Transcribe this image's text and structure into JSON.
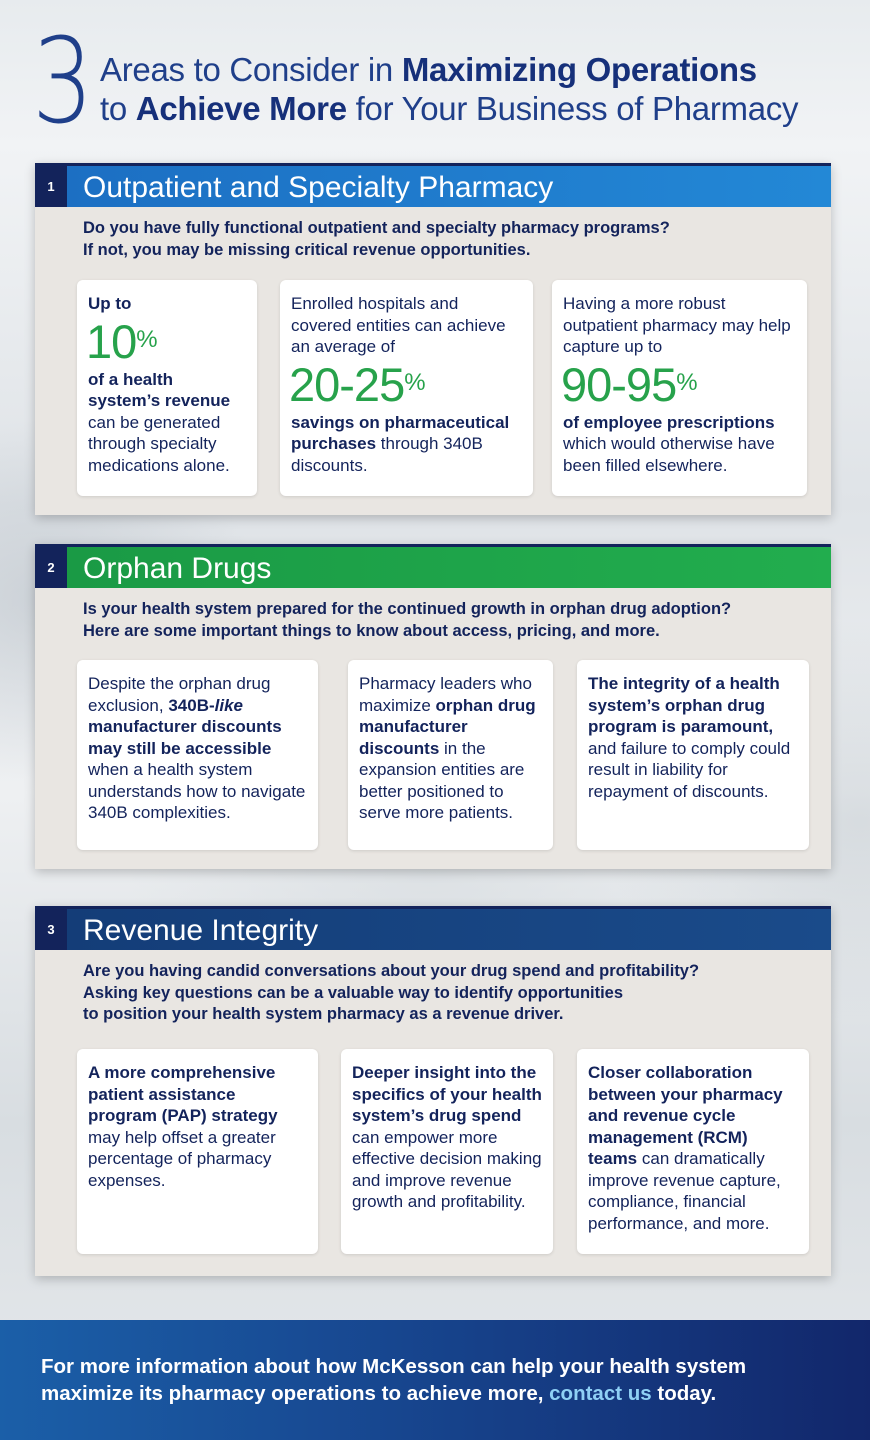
{
  "header": {
    "big_number": "3",
    "line1_pre": "Areas to Consider in ",
    "line1_bold": "Maximizing Operations",
    "line2_pre": "to ",
    "line2_bold": "Achieve More",
    "line2_post": " for Your Business of Pharmacy"
  },
  "colors": {
    "navy": "#13235b",
    "section1_bar": "#1f7ed0",
    "section2_bar": "#1fa64a",
    "section3_bar": "#17457f",
    "stat_green": "#27a24b",
    "footer_link": "#8fd0f5"
  },
  "sections": [
    {
      "number": "1",
      "title": "Outpatient and Specialty Pharmacy",
      "question_lines": [
        "Do you have fully functional outpatient and specialty pharmacy programs?",
        "If not, you may be missing critical revenue opportunities."
      ],
      "cards": [
        {
          "pre_bold": "Up to",
          "stat_value": "10",
          "stat_unit": "%",
          "bold": "of a health system’s revenue",
          "text": " can be generated through specialty medications alone."
        },
        {
          "pre_text": "Enrolled hospitals and covered entities can achieve an average of",
          "stat_value": "20-25",
          "stat_unit": "%",
          "bold": "savings on pharmaceutical purchases",
          "text": " through 340B discounts."
        },
        {
          "pre_text": "Having a more robust outpatient pharmacy may help capture up to",
          "stat_value": "90-95",
          "stat_unit": "%",
          "bold": "of employee prescriptions",
          "text": " which would otherwise have been filled elsewhere."
        }
      ]
    },
    {
      "number": "2",
      "title": "Orphan Drugs",
      "question_lines": [
        "Is your health system prepared for the continued growth in orphan drug adoption?",
        "Here are some important things to know about access, pricing, and more."
      ],
      "cards": [
        {
          "t1": "Despite the orphan drug exclusion, ",
          "b1": "340B-",
          "bi": "like",
          "b2": " manufacturer discounts may still be accessible",
          "t2": " when a health system understands how to navigate 340B complexities."
        },
        {
          "t1": "Pharmacy leaders who maximize ",
          "b1": "orphan drug manufacturer discounts",
          "t2": " in the expansion entities are better positioned to serve more patients."
        },
        {
          "b1": "The integrity of a health system’s orphan drug program is paramount,",
          "t2": " and failure to comply could result in liability for repayment of discounts."
        }
      ]
    },
    {
      "number": "3",
      "title": "Revenue Integrity",
      "question_lines": [
        "Are you having candid conversations about your drug spend and profitability?",
        "Asking key questions can be a valuable way to identify opportunities",
        "to position your health system pharmacy as a revenue driver."
      ],
      "cards": [
        {
          "b1": "A more comprehensive patient assistance program (PAP) strategy",
          "t2": " may help offset a greater percentage of pharmacy expenses."
        },
        {
          "b1": "Deeper insight into the specifics of your health system’s drug spend",
          "t2": " can empower more effective decision making and improve revenue growth and profitability."
        },
        {
          "b1": "Closer collaboration between your pharmacy and revenue cycle management (RCM) teams",
          "t2": " can dramatically improve revenue capture, compliance, financial performance, and more."
        }
      ]
    }
  ],
  "footer": {
    "line1": "For more information about how McKesson can help your health system",
    "line2_pre": "maximize its pharmacy operations to achieve more, ",
    "link": "contact us",
    "line2_post": " today."
  }
}
